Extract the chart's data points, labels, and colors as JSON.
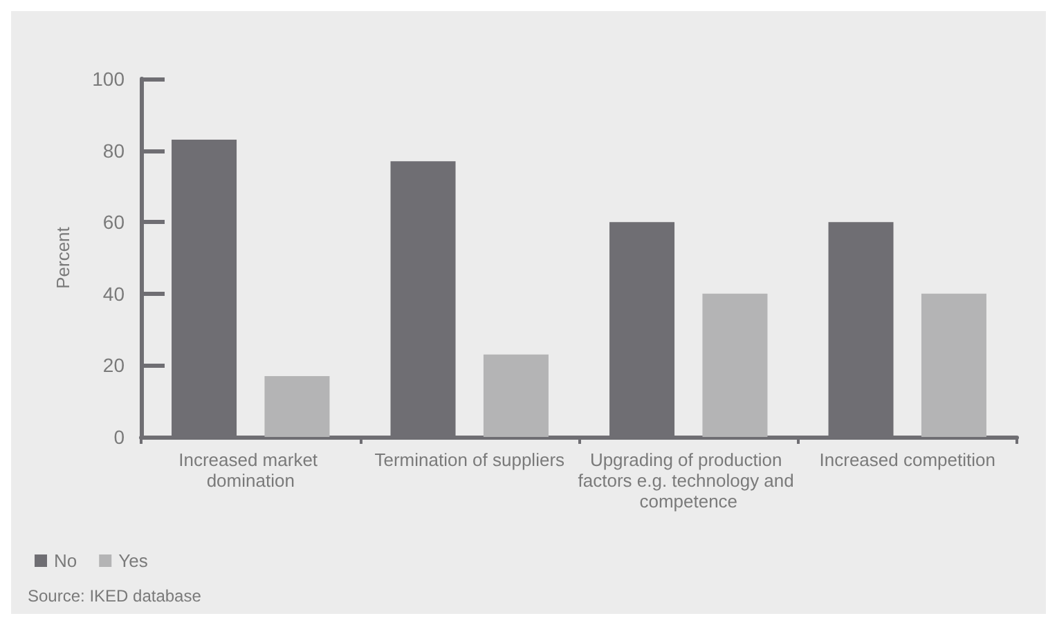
{
  "chart_data": {
    "type": "bar",
    "ylabel": "Percent",
    "categories": [
      "Increased market domination",
      "Termination of suppliers",
      "Upgrading of production factors e.g. technology and competence",
      "Increased competition"
    ],
    "series": [
      {
        "name": "No",
        "color": "#6f6e73",
        "values": [
          83,
          77,
          60,
          60
        ]
      },
      {
        "name": "Yes",
        "color": "#b4b4b5",
        "values": [
          17,
          23,
          40,
          40
        ]
      }
    ],
    "ylim": [
      0,
      100
    ],
    "yticks": [
      0,
      20,
      40,
      60,
      80,
      100
    ],
    "grid": false,
    "legend": "bottom left",
    "annotations": [
      "Source: IKED database"
    ]
  }
}
